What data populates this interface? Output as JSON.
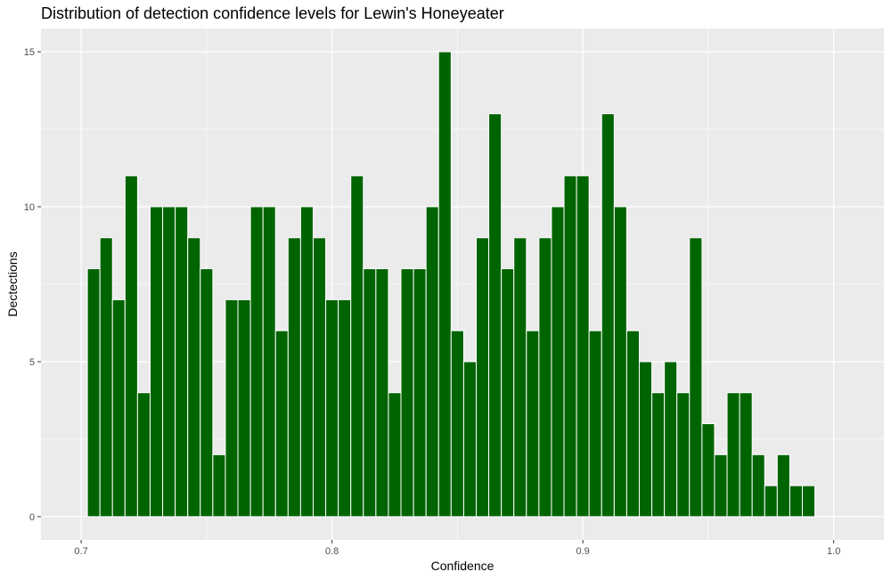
{
  "chart_data": {
    "type": "bar",
    "title": "Distribution of detection confidence levels for Lewin's Honeyeater",
    "xlabel": "Confidence",
    "ylabel": "Dectections",
    "xlim": [
      0.684,
      1.02
    ],
    "ylim": [
      -0.75,
      15.75
    ],
    "x_ticks": [
      0.7,
      0.8,
      0.9,
      1.0
    ],
    "x_tick_labels": [
      "0.7",
      "0.8",
      "0.9",
      "1.0"
    ],
    "y_ticks": [
      0,
      5,
      10,
      15
    ],
    "y_tick_labels": [
      "0",
      "5",
      "10",
      "15"
    ],
    "bin_width": 0.005,
    "bin_start": 0.7025,
    "values": [
      8,
      9,
      7,
      11,
      4,
      10,
      10,
      10,
      9,
      8,
      2,
      7,
      7,
      10,
      10,
      6,
      9,
      10,
      9,
      7,
      7,
      11,
      8,
      8,
      4,
      8,
      8,
      10,
      15,
      6,
      5,
      9,
      13,
      8,
      9,
      6,
      9,
      10,
      11,
      11,
      6,
      13,
      10,
      6,
      5,
      4,
      5,
      4,
      9,
      3,
      2,
      4,
      4,
      2,
      1,
      2,
      1,
      1
    ],
    "grid": true,
    "colors": {
      "bar_fill": "#006400",
      "bar_outline": "#ffffff",
      "panel_background": "#ebebeb",
      "grid_major": "#ffffff",
      "tick_text": "#4d4d4d"
    }
  }
}
